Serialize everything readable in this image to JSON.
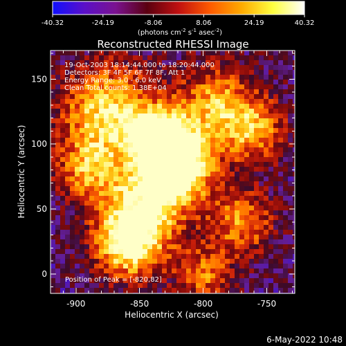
{
  "colorbar": {
    "tick_labels": [
      "-40.32",
      "-24.19",
      "-8.06",
      "8.06",
      "24.19",
      "40.32"
    ],
    "units_text": "(photons cm",
    "units_exp1": "-2",
    "units_mid": " s",
    "units_exp2": "-1",
    "units_tail": " asec",
    "units_exp3": "-2",
    "units_close": ")",
    "colors": [
      "#1010ff",
      "#5a10c8",
      "#7a1290",
      "#5a0010",
      "#c01010",
      "#ff5a00",
      "#ffaa00",
      "#ffff40",
      "#ffffff"
    ]
  },
  "title": "Reconstructed RHESSI Image",
  "info": {
    "line1": "19-Oct-2003 18:14:44.000 to 18:20:44.000",
    "line2": "Detectors: 3F 4F 5F 6F 7F 8F, Att 1",
    "line3": "Energy Range: 3.0 - 6.0 keV",
    "line4": "Clean     Total counts: 1.38E+04"
  },
  "peak_label": "Position of Peak = [-820,82]",
  "footer_timestamp": "6-May-2022 10:48",
  "chart_data": {
    "type": "heatmap",
    "title": "Reconstructed RHESSI Image",
    "xlabel": "Heliocentric X (arcsec)",
    "ylabel": "Heliocentric Y (arcsec)",
    "xlim": [
      -920,
      -728
    ],
    "ylim": [
      -15,
      172
    ],
    "x_ticks": [
      -900,
      -850,
      -800,
      -750
    ],
    "y_ticks": [
      0,
      50,
      100,
      150
    ],
    "colorbar_range": [
      -40.32,
      40.32
    ],
    "peak": {
      "x": -820,
      "y": 82
    },
    "grid": false
  }
}
